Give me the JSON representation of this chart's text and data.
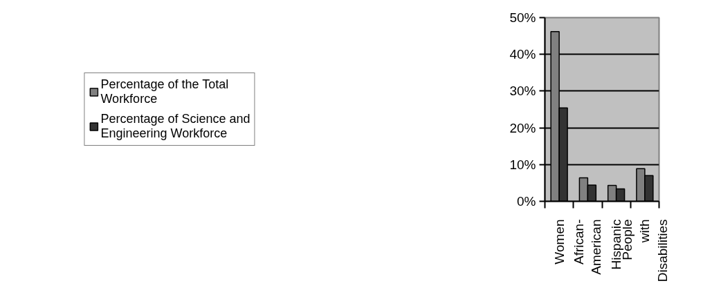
{
  "chart_data": {
    "type": "bar",
    "categories": [
      "Women",
      "African-American",
      "Hispanic",
      "People with Disabilities"
    ],
    "series": [
      {
        "name": "Percentage of the Total Workforce",
        "color": "#808080",
        "values": [
          46.2,
          6.4,
          4.3,
          8.9
        ]
      },
      {
        "name": "Percentage of Science and Engineering Workforce",
        "color": "#333333",
        "values": [
          25.4,
          4.4,
          3.4,
          7.0
        ]
      }
    ],
    "ylim": [
      0,
      50
    ],
    "yticks": [
      {
        "value": 0,
        "label": "0%"
      },
      {
        "value": 10,
        "label": "10%"
      },
      {
        "value": 20,
        "label": "20%"
      },
      {
        "value": 30,
        "label": "30%"
      },
      {
        "value": 40,
        "label": "40%"
      },
      {
        "value": 50,
        "label": "50%"
      }
    ],
    "grid": "y",
    "legend": "left"
  }
}
